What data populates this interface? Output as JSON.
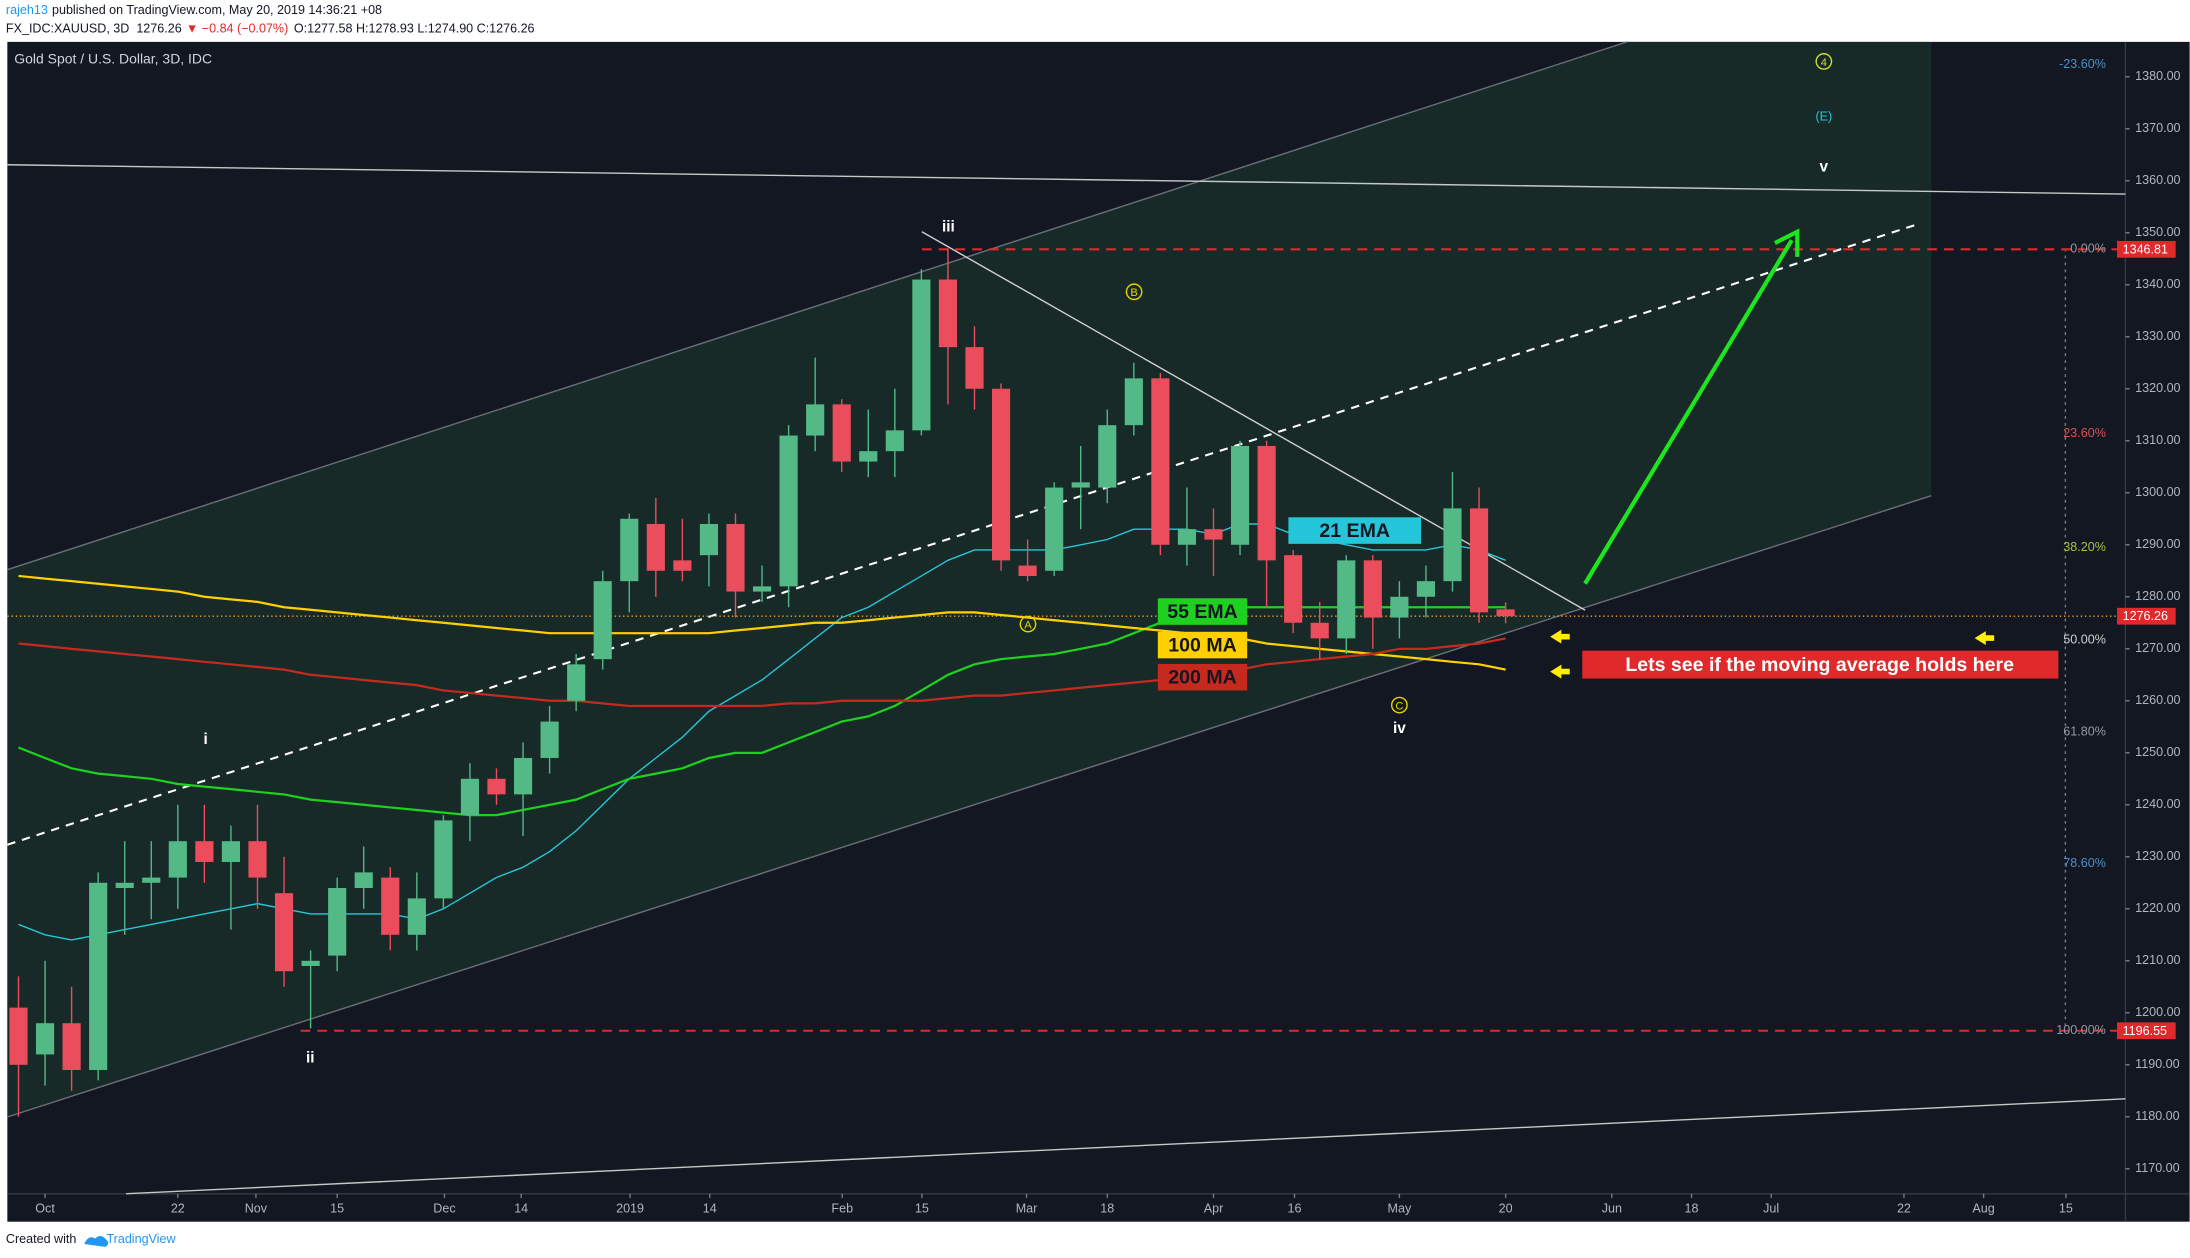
{
  "header": {
    "user": "rajeh13",
    "published": "published on TradingView.com, May 20, 2019 14:36:21 +08",
    "symbol": "FX_IDC:XAUUSD, 3D",
    "last": "1276.26",
    "change": "▼ −0.84 (−0.07%)",
    "ohlc": "O:1277.58 H:1278.93 L:1274.90 C:1276.26"
  },
  "footer": {
    "created": "Created with",
    "brand": "TradingView"
  },
  "chart_data": {
    "type": "candlestick",
    "title": "Gold Spot / U.S. Dollar, 3D, IDC",
    "up_color": "#53b987",
    "down_color": "#eb4d5c",
    "open": [
      1201,
      1192,
      1198,
      1189,
      1224,
      1225,
      1226,
      1233,
      1229,
      1233,
      1223,
      1209,
      1211,
      1224,
      1226,
      1215,
      1222,
      1238,
      1245,
      1242,
      1249,
      1260,
      1268,
      1283,
      1294,
      1287,
      1288,
      1294,
      1281,
      1282,
      1311,
      1317,
      1306,
      1308,
      1312,
      1341,
      1328,
      1320,
      1286,
      1285,
      1301,
      1301,
      1313,
      1322,
      1290,
      1293,
      1290,
      1309,
      1288,
      1275,
      1272,
      1287,
      1276,
      1280,
      1283,
      1297,
      1277.58
    ],
    "high": [
      1207,
      1210,
      1205,
      1227,
      1233,
      1233,
      1240,
      1240,
      1236,
      1240,
      1230,
      1212,
      1226,
      1232,
      1228,
      1227,
      1238,
      1248,
      1247,
      1252,
      1259,
      1269,
      1285,
      1296,
      1299,
      1295,
      1296,
      1296,
      1286,
      1313,
      1326,
      1318,
      1316,
      1320,
      1343,
      1347,
      1332,
      1321,
      1291,
      1302,
      1309,
      1316,
      1325,
      1323,
      1301,
      1297,
      1310,
      1310,
      1289,
      1279,
      1288,
      1288,
      1283,
      1286,
      1304,
      1301,
      1278.93
    ],
    "low": [
      1180,
      1186,
      1185,
      1187,
      1215,
      1218,
      1220,
      1225,
      1216,
      1220,
      1205,
      1197,
      1208,
      1220,
      1212,
      1212,
      1220,
      1233,
      1240,
      1234,
      1246,
      1258,
      1266,
      1277,
      1280,
      1283,
      1282,
      1276,
      1279,
      1278,
      1308,
      1304,
      1303,
      1303,
      1311,
      1317,
      1316,
      1285,
      1283,
      1284,
      1293,
      1298,
      1311,
      1288,
      1286,
      1284,
      1288,
      1278,
      1273,
      1268,
      1269,
      1270,
      1272,
      1276,
      1281,
      1275,
      1274.9
    ],
    "close": [
      1190,
      1198,
      1189,
      1225,
      1225,
      1226,
      1233,
      1229,
      1233,
      1226,
      1208,
      1210,
      1224,
      1227,
      1215,
      1222,
      1237,
      1245,
      1242,
      1249,
      1256,
      1267,
      1283,
      1295,
      1285,
      1285,
      1294,
      1281,
      1282,
      1311,
      1317,
      1306,
      1308,
      1312,
      1341,
      1328,
      1320,
      1287,
      1284,
      1301,
      1302,
      1313,
      1322,
      1290,
      1293,
      1291,
      1309,
      1287,
      1275,
      1272,
      1287,
      1276,
      1280,
      1283,
      1297,
      1277,
      1276.26
    ],
    "overlays": [
      {
        "name": "21 EMA",
        "color": "#26c6da",
        "values": [
          1217,
          1215,
          1214,
          1215,
          1216,
          1217,
          1218,
          1219,
          1220,
          1221,
          1220,
          1219,
          1219,
          1219,
          1219,
          1218,
          1220,
          1223,
          1226,
          1228,
          1231,
          1235,
          1240,
          1245,
          1249,
          1253,
          1258,
          1261,
          1264,
          1268,
          1272,
          1276,
          1278,
          1281,
          1284,
          1287,
          1289,
          1289,
          1289,
          1289,
          1290,
          1291,
          1293,
          1293,
          1293,
          1292,
          1294,
          1294,
          1292,
          1291,
          1290,
          1289,
          1289,
          1289,
          1290,
          1289,
          1287
        ]
      },
      {
        "name": "55 EMA",
        "color": "#1fd11f",
        "values": [
          1251,
          1249,
          1247,
          1246,
          1245.5,
          1245,
          1244,
          1243.5,
          1243,
          1242.5,
          1242,
          1241,
          1240.5,
          1240,
          1239.5,
          1239,
          1238.5,
          1238,
          1238,
          1239,
          1240,
          1241,
          1243,
          1245,
          1246,
          1247,
          1249,
          1250,
          1250,
          1252,
          1254,
          1256,
          1257,
          1259,
          1262,
          1265,
          1267,
          1268,
          1268.5,
          1269,
          1270,
          1271,
          1273,
          1275,
          1276,
          1277,
          1278,
          1278,
          1278,
          1278,
          1278,
          1278,
          1278,
          1278,
          1278,
          1278,
          1278
        ]
      },
      {
        "name": "100 MA",
        "color": "#ffd000",
        "values": [
          1284,
          1283.5,
          1283,
          1282.5,
          1282,
          1281.5,
          1281,
          1280,
          1279.5,
          1279,
          1278,
          1277.5,
          1277,
          1276.5,
          1276,
          1275.5,
          1275,
          1274.5,
          1274,
          1273.5,
          1273,
          1273,
          1273,
          1273,
          1273,
          1273,
          1273,
          1273.5,
          1274,
          1274.5,
          1275,
          1275,
          1275.5,
          1276,
          1276.5,
          1277,
          1277,
          1276.5,
          1276,
          1275.5,
          1275,
          1274.5,
          1274,
          1273.5,
          1273,
          1272.5,
          1272,
          1271,
          1270.5,
          1270,
          1269.5,
          1269,
          1268.5,
          1268,
          1267.5,
          1267,
          1266
        ]
      },
      {
        "name": "200 MA",
        "color": "#c62a1f",
        "values": [
          1271,
          1270.5,
          1270,
          1269.5,
          1269,
          1268.5,
          1268,
          1267.5,
          1267,
          1266.5,
          1266,
          1265,
          1264.5,
          1264,
          1263.5,
          1263,
          1262,
          1261.5,
          1261,
          1260.5,
          1260,
          1260,
          1259.5,
          1259,
          1259,
          1259,
          1259,
          1259,
          1259,
          1259.5,
          1259.5,
          1260,
          1260,
          1260,
          1260,
          1260.5,
          1261,
          1261,
          1261.5,
          1262,
          1262.5,
          1263,
          1263.5,
          1264,
          1265,
          1265.5,
          1266,
          1267,
          1267.5,
          1268,
          1268.5,
          1269,
          1270,
          1270,
          1270.5,
          1271,
          1272
        ]
      }
    ],
    "xlim": [
      -0.42,
      79.34
    ],
    "xticks": [
      {
        "value": 1.0,
        "label": "Oct"
      },
      {
        "value": 6.0,
        "label": "22"
      },
      {
        "value": 8.94,
        "label": "Nov"
      },
      {
        "value": 12.0,
        "label": "15"
      },
      {
        "value": 16.04,
        "label": "Dec"
      },
      {
        "value": 18.93,
        "label": "14"
      },
      {
        "value": 23.03,
        "label": "2019"
      },
      {
        "value": 26.03,
        "label": "14"
      },
      {
        "value": 31.02,
        "label": "Feb"
      },
      {
        "value": 34.02,
        "label": "15"
      },
      {
        "value": 37.96,
        "label": "Mar"
      },
      {
        "value": 41.0,
        "label": "18"
      },
      {
        "value": 45.0,
        "label": "Apr"
      },
      {
        "value": 48.05,
        "label": "16"
      },
      {
        "value": 52.0,
        "label": "May"
      },
      {
        "value": 56.0,
        "label": "20"
      },
      {
        "value": 60.0,
        "label": "Jun"
      },
      {
        "value": 63.0,
        "label": "18"
      },
      {
        "value": 66.0,
        "label": "Jul"
      },
      {
        "value": 71.0,
        "label": "22"
      },
      {
        "value": 74.0,
        "label": "Aug"
      },
      {
        "value": 77.1,
        "label": "15"
      }
    ],
    "ylim": [
      1165.2,
      1386.7
    ],
    "yticks": [
      {
        "value": 1170,
        "label": "1170.00"
      },
      {
        "value": 1180,
        "label": "1180.00"
      },
      {
        "value": 1190,
        "label": "1190.00"
      },
      {
        "value": 1200,
        "label": "1200.00"
      },
      {
        "value": 1210,
        "label": "1210.00"
      },
      {
        "value": 1220,
        "label": "1220.00"
      },
      {
        "value": 1230,
        "label": "1230.00"
      },
      {
        "value": 1240,
        "label": "1240.00"
      },
      {
        "value": 1250,
        "label": "1250.00"
      },
      {
        "value": 1260,
        "label": "1260.00"
      },
      {
        "value": 1270,
        "label": "1270.00"
      },
      {
        "value": 1280,
        "label": "1280.00"
      },
      {
        "value": 1290,
        "label": "1290.00"
      },
      {
        "value": 1300,
        "label": "1300.00"
      },
      {
        "value": 1310,
        "label": "1310.00"
      },
      {
        "value": 1320,
        "label": "1320.00"
      },
      {
        "value": 1330,
        "label": "1330.00"
      },
      {
        "value": 1340,
        "label": "1340.00"
      },
      {
        "value": 1350,
        "label": "1350.00"
      },
      {
        "value": 1360,
        "label": "1360.00"
      },
      {
        "value": 1370,
        "label": "1370.00"
      },
      {
        "value": 1380,
        "label": "1380.00"
      }
    ],
    "levels": [
      1346.81,
      1276.26,
      1196.55
    ],
    "level_color": "#e0292b",
    "fib_levels": [
      {
        "value": -23.6,
        "label": "-23.60%"
      },
      {
        "value": 0,
        "label": "0.00%"
      },
      {
        "value": 23.6,
        "label": "23.60%"
      },
      {
        "value": 38.2,
        "label": "38.20%"
      },
      {
        "value": 50,
        "label": "50.00%"
      },
      {
        "value": 61.8,
        "label": "61.80%"
      },
      {
        "value": 78.6,
        "label": "78.60%"
      },
      {
        "value": 100,
        "label": "100.00%"
      }
    ],
    "fib_colors": [
      "#4a90c8",
      "#9598a1",
      "#d9534f",
      "#a8c23a",
      "#d0d0d0",
      "#9598a1",
      "#4a90c8",
      "#9598a1"
    ],
    "waves": [
      "iii",
      "i",
      "ii",
      "iv",
      "v",
      "A",
      "B",
      "C",
      "4",
      "(E)"
    ],
    "annotation": "Lets see if the moving average holds here"
  }
}
